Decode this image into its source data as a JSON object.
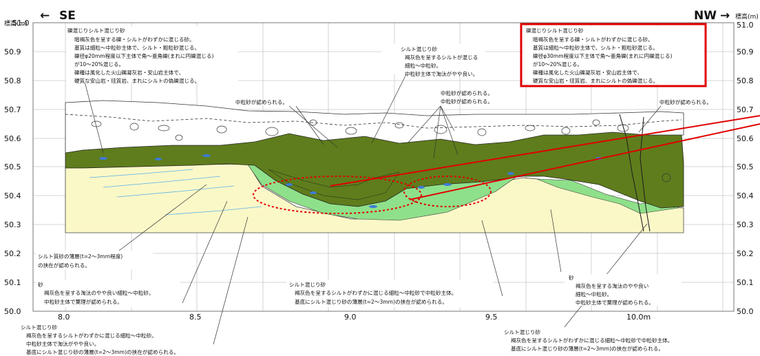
{
  "axes": {
    "left_label": "標高(m)",
    "right_label": "標高(m)",
    "left_dir_arrow": "←",
    "left_dir": "SE",
    "right_dir_arrow": "→",
    "right_dir": "NW",
    "y_ticks": [
      "51.0",
      "50.9",
      "50.8",
      "50.7",
      "50.6",
      "50.5",
      "50.4",
      "50.3",
      "50.2",
      "50.1",
      "50.0"
    ],
    "x_ticks": [
      "8.0",
      "8.5",
      "9.0",
      "9.5",
      "10.0m"
    ]
  },
  "notes": {
    "gravel_left": {
      "title": "礫混じりシルト混じり砂",
      "lines": [
        "暗褐灰色を呈する礫・シルトがわずかに混じる砂。",
        "基質は細粒～中粒砂主体で、シルト・粗粒砂混じる。",
        "礫径φ20mm程度以下主体で角～亜角礫(まれに円礫混じる)",
        "が10～20%混じる。",
        "礫種は風化した火山礫凝灰岩・安山岩主体で、",
        "硬質な安山岩・珪質岩、まれにシルトの偽礫混じる。"
      ]
    },
    "gravel_right": {
      "title": "礫混じりシルト混じり砂",
      "lines": [
        "暗褐灰色を呈する礫・シルトがわずかに混じる砂。",
        "基質は細粒～中粒砂主体で、シルト・粗粒砂混じる。",
        "礫径φ30mm程度以下主体で角～亜角礫(まれに円礫混じる)",
        "が10～20%混じる。",
        "礫種は風化した火山礫凝灰岩・安山岩主体で、",
        "硬質な安山岩・珪質岩、まれにシルトの偽礫混じる。"
      ]
    },
    "silt_top": {
      "title": "シルト混じり砂",
      "lines": [
        "褐灰色を呈するシルトが混じる",
        "細粒～中粒砂。",
        "中粒砂主体で淘汰がやや良い。"
      ]
    },
    "medium_1": "中粒砂が認められる。",
    "medium_2": "中粒砂が認められる。",
    "medium_3": "中粒砂が認められる。",
    "medium_4": "中粒砂が認められる。",
    "silty_thin": {
      "lines": [
        "シルト質砂の薄層(t=2～3mm程度)",
        "の挟在が認められる。"
      ]
    },
    "sand_left": {
      "title": "砂",
      "lines": [
        "褐灰色を呈する淘汰のやや良い細粒～中粒砂。",
        "中粒砂主体で葉理が認められる。"
      ]
    },
    "silt_mid": {
      "title": "シルト混じり砂",
      "lines": [
        "褐灰色を呈するシルトがわずかに混じる細粒～中粒砂で中粒砂主体。",
        "基底にシルト混じり砂の薄層(t=2～3mm)の挟在が認められる。"
      ]
    },
    "sand_right": {
      "title": "砂",
      "lines": [
        "褐灰色を呈する淘汰のやや良い",
        "細粒～中粒砂。",
        "中粒砂主体で葉理が認められる。"
      ]
    },
    "silt_bottom_left": {
      "title": "シルト混じり砂",
      "lines": [
        "褐灰色を呈するシルトがわずかに混じる細粒～中粒砂。",
        "中粒砂主体で淘汰がやや良い。",
        "基底にシルト混じり砂の薄層(t=2～3mm)の挟在が認められる。"
      ]
    },
    "silt_bottom_right": {
      "title": "シルト混じり砂",
      "lines": [
        "褐灰色を呈するシルトがわずかに混じる細粒～中粒砂で中粒砂主体。",
        "基底にシルト混じり砂の薄層(t=2～3mm)の挟在が認められる。"
      ]
    },
    "colors": {
      "gravel": "#5f7d1c",
      "silt_sand": "#8fe08a",
      "sand": "#fbf8c8",
      "highlight": "#e00000"
    }
  }
}
